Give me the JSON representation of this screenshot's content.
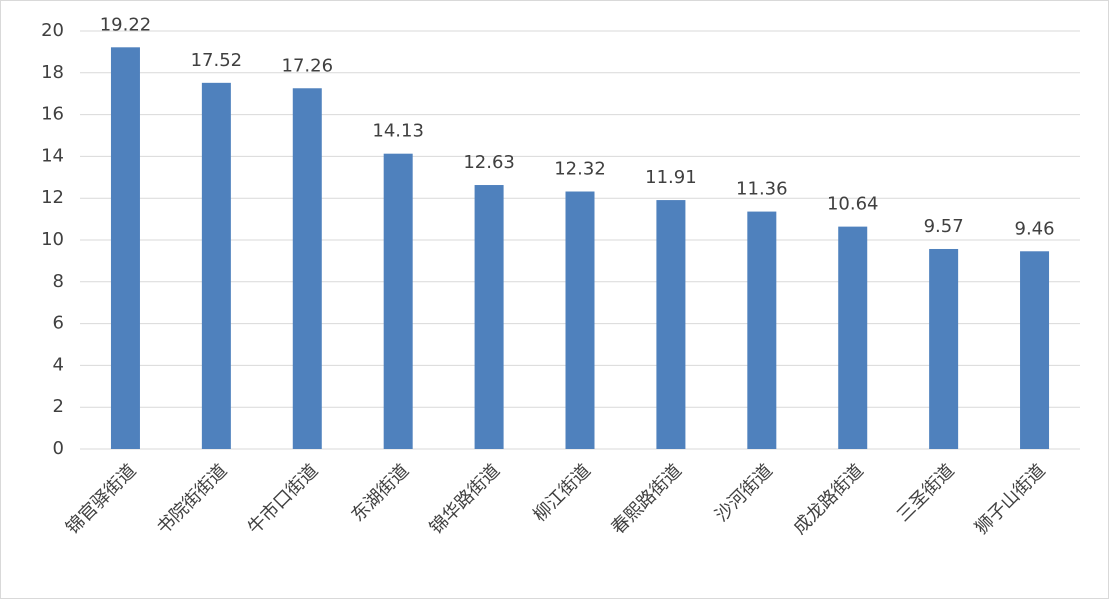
{
  "chart_data": {
    "type": "bar",
    "categories": [
      "锦官驿街道",
      "书院街街道",
      "牛市口街道",
      "东湖街道",
      "锦华路街道",
      "柳江街道",
      "春熙路街道",
      "沙河街道",
      "成龙路街道",
      "三圣街道",
      "狮子山街道"
    ],
    "values": [
      19.22,
      17.52,
      17.26,
      14.13,
      12.63,
      12.32,
      11.91,
      11.36,
      10.64,
      9.57,
      9.46
    ],
    "color": "#4f81bd",
    "ylim": [
      0,
      20
    ],
    "yticks": [
      0,
      2,
      4,
      6,
      8,
      10,
      12,
      14,
      16,
      18,
      20
    ],
    "grid": true
  }
}
